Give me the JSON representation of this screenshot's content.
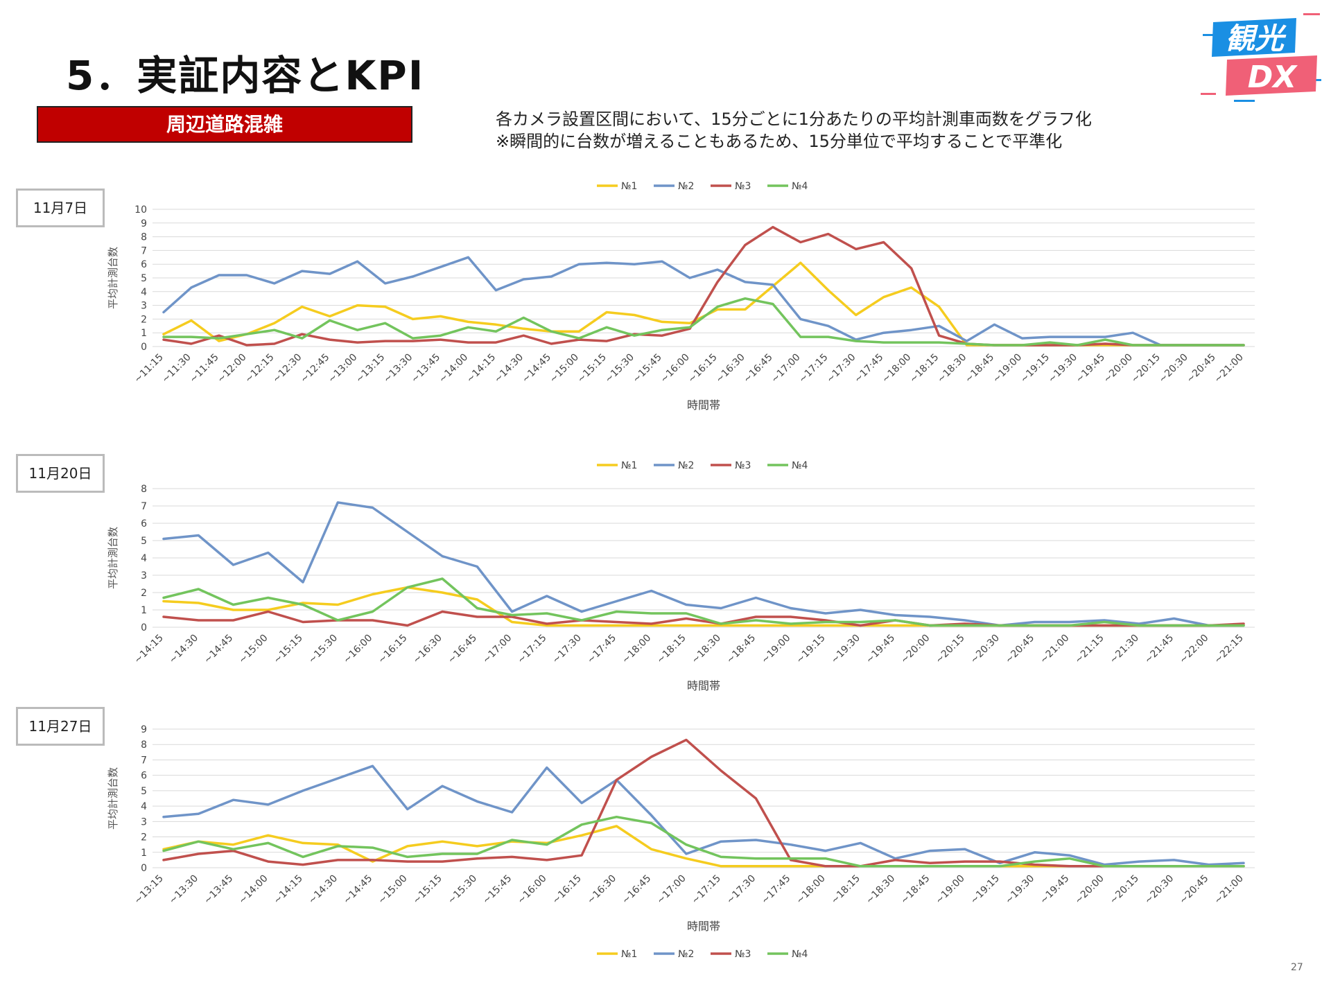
{
  "header": {
    "title": "5．実証内容とKPI",
    "badge": "周辺道路混雑",
    "desc_line1": "各カメラ設置区間において、15分ごとに1分あたりの平均計測車両数をグラフ化",
    "desc_line2": "※瞬間的に台数が増えることもあるため、15分単位で平均することで平準化"
  },
  "logo": {
    "line1": "観光",
    "line2": "DX",
    "colors": {
      "blue": "#1a8fe3",
      "pink": "#f06077"
    }
  },
  "page_number": "27",
  "chart_data": [
    {
      "type": "line",
      "date_label": "11月7日",
      "xlabel": "時間帯",
      "ylabel": "平均計測台数",
      "ylim": [
        0,
        10
      ],
      "yticks": [
        "0",
        "1",
        "2",
        "3",
        "4",
        "5",
        "6",
        "7",
        "8",
        "9",
        "10"
      ],
      "legend_position": "top",
      "categories": [
        "~11:15",
        "~11:30",
        "~11:45",
        "~12:00",
        "~12:15",
        "~12:30",
        "~12:45",
        "~13:00",
        "~13:15",
        "~13:30",
        "~13:45",
        "~14:00",
        "~14:15",
        "~14:30",
        "~14:45",
        "~15:00",
        "~15:15",
        "~15:30",
        "~15:45",
        "~16:00",
        "~16:15",
        "~16:30",
        "~16:45",
        "~17:00",
        "~17:15",
        "~17:30",
        "~17:45",
        "~18:00",
        "~18:15",
        "~18:30",
        "~18:45",
        "~19:00",
        "~19:15",
        "~19:30",
        "~19:45",
        "~20:00",
        "~20:15",
        "~20:30",
        "~20:45",
        "~21:00"
      ],
      "series": [
        {
          "name": "№1",
          "color": "#f5cc1f",
          "values": [
            0.9,
            1.9,
            0.4,
            0.9,
            1.7,
            2.9,
            2.2,
            3.0,
            2.9,
            2.0,
            2.2,
            1.8,
            1.6,
            1.3,
            1.1,
            1.1,
            2.5,
            2.3,
            1.8,
            1.7,
            2.7,
            2.7,
            4.4,
            6.1,
            4.1,
            2.3,
            3.6,
            4.3,
            2.9,
            0.1,
            0.1,
            0.1,
            0.1,
            0.1,
            0.1,
            0.1,
            0.1,
            0.1,
            0.1,
            0.1
          ]
        },
        {
          "name": "№2",
          "color": "#6f94c8",
          "values": [
            2.5,
            4.3,
            5.2,
            5.2,
            4.6,
            5.5,
            5.3,
            6.2,
            4.6,
            5.1,
            5.8,
            6.5,
            4.1,
            4.9,
            5.1,
            6.0,
            6.1,
            6.0,
            6.2,
            5.0,
            5.6,
            4.7,
            4.5,
            2.0,
            1.5,
            0.5,
            1.0,
            1.2,
            1.5,
            0.4,
            1.6,
            0.6,
            0.7,
            0.7,
            0.7,
            1.0,
            0.1,
            0.1,
            0.1,
            0.1
          ]
        },
        {
          "name": "№3",
          "color": "#c0504d",
          "values": [
            0.5,
            0.2,
            0.8,
            0.1,
            0.2,
            0.9,
            0.5,
            0.3,
            0.4,
            0.4,
            0.5,
            0.3,
            0.3,
            0.8,
            0.2,
            0.5,
            0.4,
            0.9,
            0.8,
            1.3,
            4.7,
            7.4,
            8.7,
            7.6,
            8.2,
            7.1,
            7.6,
            5.7,
            0.8,
            0.2,
            0.1,
            0.1,
            0.1,
            0.1,
            0.2,
            0.1,
            0.1,
            0.1,
            0.1,
            0.1
          ]
        },
        {
          "name": "№4",
          "color": "#73c45d",
          "values": [
            0.7,
            0.7,
            0.6,
            0.9,
            1.2,
            0.6,
            1.9,
            1.2,
            1.7,
            0.6,
            0.8,
            1.4,
            1.1,
            2.1,
            1.1,
            0.6,
            1.4,
            0.8,
            1.2,
            1.4,
            2.9,
            3.5,
            3.1,
            0.7,
            0.7,
            0.4,
            0.3,
            0.3,
            0.3,
            0.2,
            0.1,
            0.1,
            0.3,
            0.1,
            0.5,
            0.1,
            0.1,
            0.1,
            0.1,
            0.1
          ]
        }
      ]
    },
    {
      "type": "line",
      "date_label": "11月20日",
      "xlabel": "時間帯",
      "ylabel": "平均計測台数",
      "ylim": [
        0,
        8
      ],
      "yticks": [
        "0",
        "1",
        "2",
        "3",
        "4",
        "5",
        "6",
        "7",
        "8"
      ],
      "legend_position": "top",
      "categories": [
        "~14:15",
        "~14:30",
        "~14:45",
        "~15:00",
        "~15:15",
        "~15:30",
        "~16:00",
        "~16:15",
        "~16:30",
        "~16:45",
        "~17:00",
        "~17:15",
        "~17:30",
        "~17:45",
        "~18:00",
        "~18:15",
        "~18:30",
        "~18:45",
        "~19:00",
        "~19:15",
        "~19:30",
        "~19:45",
        "~20:00",
        "~20:15",
        "~20:30",
        "~20:45",
        "~21:00",
        "~21:15",
        "~21:30",
        "~21:45",
        "~22:00",
        "~22:15"
      ],
      "series": [
        {
          "name": "№1",
          "color": "#f5cc1f",
          "values": [
            1.5,
            1.4,
            1.0,
            1.0,
            1.4,
            1.3,
            1.9,
            2.3,
            2.0,
            1.6,
            0.3,
            0.1,
            0.1,
            0.1,
            0.1,
            0.1,
            0.1,
            0.1,
            0.1,
            0.1,
            0.1,
            0.1,
            0.1,
            0.1,
            0.1,
            0.1,
            0.1,
            0.1,
            0.1,
            0.1,
            0.1,
            0.1
          ]
        },
        {
          "name": "№2",
          "color": "#6f94c8",
          "values": [
            5.1,
            5.3,
            3.6,
            4.3,
            2.6,
            7.2,
            6.9,
            5.5,
            4.1,
            3.5,
            0.9,
            1.8,
            0.9,
            1.5,
            2.1,
            1.3,
            1.1,
            1.7,
            1.1,
            0.8,
            1.0,
            0.7,
            0.6,
            0.4,
            0.1,
            0.3,
            0.3,
            0.4,
            0.2,
            0.5,
            0.1,
            0.1
          ]
        },
        {
          "name": "№3",
          "color": "#c0504d",
          "values": [
            0.6,
            0.4,
            0.4,
            0.9,
            0.3,
            0.4,
            0.4,
            0.1,
            0.9,
            0.6,
            0.6,
            0.2,
            0.4,
            0.3,
            0.2,
            0.5,
            0.2,
            0.6,
            0.6,
            0.4,
            0.1,
            0.4,
            0.1,
            0.2,
            0.1,
            0.1,
            0.1,
            0.1,
            0.1,
            0.1,
            0.1,
            0.2
          ]
        },
        {
          "name": "№4",
          "color": "#73c45d",
          "values": [
            1.7,
            2.2,
            1.3,
            1.7,
            1.3,
            0.4,
            0.9,
            2.3,
            2.8,
            1.1,
            0.7,
            0.8,
            0.4,
            0.9,
            0.8,
            0.8,
            0.2,
            0.4,
            0.2,
            0.3,
            0.3,
            0.4,
            0.1,
            0.1,
            0.1,
            0.1,
            0.1,
            0.3,
            0.1,
            0.1,
            0.1,
            0.1
          ]
        }
      ]
    },
    {
      "type": "line",
      "date_label": "11月27日",
      "xlabel": "時間帯",
      "ylabel": "平均計測台数",
      "ylim": [
        0,
        9
      ],
      "yticks": [
        "0",
        "1",
        "2",
        "3",
        "4",
        "5",
        "6",
        "7",
        "8",
        "9"
      ],
      "legend_position": "bottom",
      "categories": [
        "~13:15",
        "~13:30",
        "~13:45",
        "~14:00",
        "~14:15",
        "~14:30",
        "~14:45",
        "~15:00",
        "~15:15",
        "~15:30",
        "~15:45",
        "~16:00",
        "~16:15",
        "~16:30",
        "~16:45",
        "~17:00",
        "~17:15",
        "~17:30",
        "~17:45",
        "~18:00",
        "~18:15",
        "~18:30",
        "~18:45",
        "~19:00",
        "~19:15",
        "~19:30",
        "~19:45",
        "~20:00",
        "~20:15",
        "~20:30",
        "~20:45",
        "~21:00"
      ],
      "series": [
        {
          "name": "№1",
          "color": "#f5cc1f",
          "values": [
            1.2,
            1.7,
            1.5,
            2.1,
            1.6,
            1.5,
            0.4,
            1.4,
            1.7,
            1.4,
            1.7,
            1.6,
            2.1,
            2.7,
            1.2,
            0.6,
            0.1,
            0.1,
            0.1,
            0.1,
            0.1,
            0.1,
            0.1,
            0.1,
            0.1,
            0.1,
            0.1,
            0.1,
            0.1,
            0.1,
            0.1,
            0.1
          ]
        },
        {
          "name": "№2",
          "color": "#6f94c8",
          "values": [
            3.3,
            3.5,
            4.4,
            4.1,
            5.0,
            5.8,
            6.6,
            3.8,
            5.3,
            4.3,
            3.6,
            6.5,
            4.2,
            5.7,
            3.4,
            0.9,
            1.7,
            1.8,
            1.5,
            1.1,
            1.6,
            0.6,
            1.1,
            1.2,
            0.3,
            1.0,
            0.8,
            0.2,
            0.4,
            0.5,
            0.2,
            0.3
          ]
        },
        {
          "name": "№3",
          "color": "#c0504d",
          "values": [
            0.5,
            0.9,
            1.1,
            0.4,
            0.2,
            0.5,
            0.5,
            0.4,
            0.4,
            0.6,
            0.7,
            0.5,
            0.8,
            5.7,
            7.2,
            8.3,
            6.3,
            4.5,
            0.5,
            0.1,
            0.1,
            0.5,
            0.3,
            0.4,
            0.4,
            0.2,
            0.1,
            0.1,
            0.1,
            0.1,
            0.1,
            0.1
          ]
        },
        {
          "name": "№4",
          "color": "#73c45d",
          "values": [
            1.1,
            1.7,
            1.2,
            1.6,
            0.7,
            1.4,
            1.3,
            0.7,
            0.9,
            0.9,
            1.8,
            1.5,
            2.8,
            3.3,
            2.9,
            1.5,
            0.7,
            0.6,
            0.6,
            0.6,
            0.1,
            0.1,
            0.1,
            0.1,
            0.1,
            0.4,
            0.6,
            0.1,
            0.1,
            0.1,
            0.1,
            0.1
          ]
        }
      ]
    }
  ]
}
